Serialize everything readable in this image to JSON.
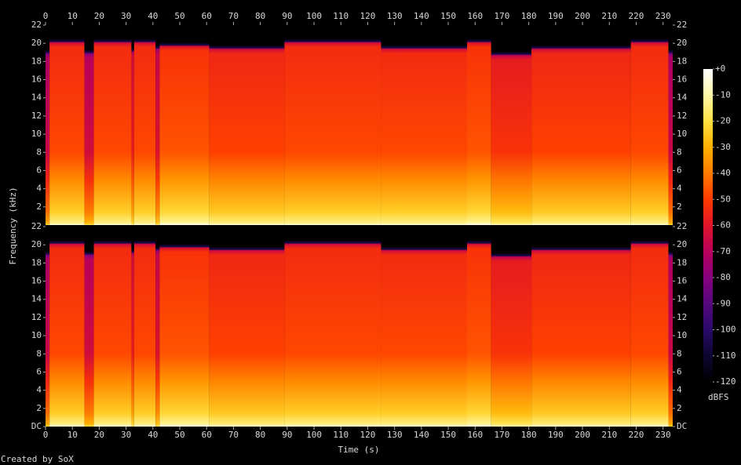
{
  "chart_data": {
    "type": "spectrogram",
    "x_label": "Time (s)",
    "y_label": "Frequency (kHz)",
    "colorbar_label": "dBFS",
    "footer": "Created by SoX",
    "xlim": [
      0,
      233.6
    ],
    "xticks": [
      0,
      10,
      20,
      30,
      40,
      50,
      60,
      70,
      80,
      90,
      100,
      110,
      120,
      130,
      140,
      150,
      160,
      170,
      180,
      190,
      200,
      210,
      220,
      230
    ],
    "ylim": [
      0,
      22
    ],
    "channels": [
      {
        "yticks": [
          2,
          4,
          6,
          8,
          10,
          12,
          14,
          16,
          18,
          20,
          22
        ]
      },
      {
        "yticks": [
          {
            "value": 0,
            "label": "DC"
          },
          2,
          4,
          6,
          8,
          10,
          12,
          14,
          16,
          18,
          20,
          22
        ]
      }
    ],
    "colorbar_lim": [
      -120,
      0
    ],
    "colorbar_ticks": [
      {
        "value": 0,
        "label": "+0"
      },
      -10,
      -20,
      -30,
      -40,
      -50,
      -60,
      -70,
      -80,
      -90,
      -100,
      -110,
      -120
    ],
    "colormap": [
      "#000000",
      "#0c0630",
      "#2a0a6a",
      "#55087e",
      "#86007e",
      "#b8005c",
      "#e01428",
      "#ff3a00",
      "#ff7a00",
      "#ffb000",
      "#ffe040",
      "#fff8a8",
      "#ffffff"
    ],
    "segments": {
      "start": [
        0,
        1.5,
        14.5,
        18,
        32,
        33,
        41,
        42.5,
        61,
        89,
        125,
        157,
        166,
        181,
        218,
        232
      ],
      "end": [
        1.5,
        14.5,
        18,
        32,
        33,
        41,
        42.5,
        61,
        89,
        125,
        157,
        166,
        181,
        218,
        232,
        233.6
      ],
      "cutoff": [
        19,
        20.2,
        19,
        20.2,
        19.2,
        20.2,
        19.5,
        19.8,
        19.5,
        20.2,
        19.5,
        20.2,
        18.8,
        19.5,
        20.2,
        19
      ],
      "level": [
        -70,
        -52,
        -68,
        -52,
        -62,
        -52,
        -65,
        -50,
        -53,
        -52,
        -52,
        -50,
        -56,
        -53,
        -52,
        -70
      ]
    }
  }
}
